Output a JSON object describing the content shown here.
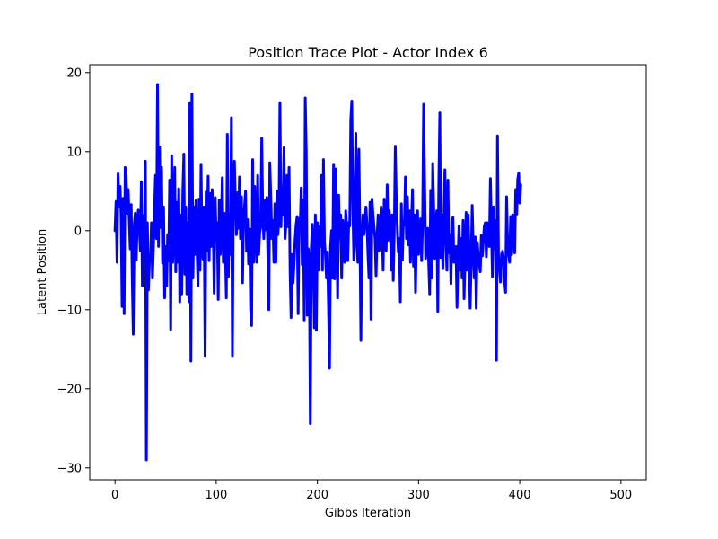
{
  "chart_data": {
    "type": "line",
    "title": "Position Trace Plot - Actor Index 6",
    "xlabel": "Gibbs Iteration",
    "ylabel": "Latent Position",
    "xlim": [
      -25,
      525
    ],
    "ylim": [
      -31.5,
      21
    ],
    "x_ticks": [
      0,
      100,
      200,
      300,
      400,
      500
    ],
    "x_tick_labels": [
      "0",
      "100",
      "200",
      "300",
      "400",
      "500"
    ],
    "y_ticks": [
      -30,
      -20,
      -10,
      0,
      10,
      20
    ],
    "y_tick_labels": [
      "−30",
      "−20",
      "−10",
      "0",
      "10",
      "20"
    ],
    "grid": false,
    "series": [
      {
        "color": "#0000ff",
        "x_start": 0,
        "x_step": 1,
        "values": [
          0,
          3.7,
          -4.0,
          7.2,
          3.1,
          5.6,
          2.0,
          -9.6,
          4.1,
          -10.5,
          8.0,
          7.1,
          2.2,
          5.2,
          1.5,
          -2.3,
          3.3,
          -6.0,
          -13.1,
          0.8,
          2.2,
          -3.7,
          1.1,
          2.6,
          0.5,
          -2.5,
          6.2,
          -7.0,
          1.9,
          -2.0,
          8.8,
          -29.0,
          1.0,
          -7.5,
          -4.0,
          -3.8,
          1.0,
          -6.0,
          -2.0,
          2.7,
          7.0,
          -1.0,
          18.5,
          -2.0,
          10.6,
          0.4,
          8.0,
          -4.1,
          3.0,
          -8.5,
          -2.0,
          -7.0,
          -0.5,
          -3.8,
          6.4,
          -12.5,
          9.5,
          -4.0,
          1.5,
          8.0,
          -5.2,
          3.6,
          -4.0,
          5.3,
          -9.0,
          2.0,
          -8.0,
          4.9,
          9.7,
          -5.5,
          3.0,
          -8.0,
          1.0,
          -9.0,
          16.2,
          -16.5,
          17.3,
          -6.0,
          3.0,
          -3.0,
          3.8,
          -2.2,
          -7.0,
          4.0,
          -5.0,
          8.3,
          -2.0,
          -3.6,
          3.0,
          -15.8,
          4.9,
          -2.5,
          6.9,
          -3.8,
          4.7,
          -2.0,
          5.2,
          0.7,
          -7.9,
          4.2,
          -1.0,
          1.0,
          -8.7,
          3.9,
          -3.0,
          0.5,
          6.7,
          -4.0,
          2.2,
          -2.0,
          -8.5,
          12.2,
          -5.8,
          2.1,
          -3.0,
          14.3,
          -15.8,
          6.0,
          8.8,
          3.2,
          -0.5,
          4.8,
          0.3,
          6.8,
          -1.0,
          4.3,
          -6.6,
          1.0,
          3.1,
          5.0,
          -2.6,
          1.4,
          -4.2,
          0.2,
          -10.0,
          -12.0,
          9.0,
          -4.0,
          5.6,
          1.1,
          -4.0,
          7.0,
          -3.0,
          -0.2,
          0.5,
          11.7,
          2.2,
          -1.0,
          3.8,
          0.1,
          4.2,
          -3.0,
          -10.0,
          8.6,
          4.0,
          -1.0,
          1.3,
          -4.0,
          3.4,
          -4.0,
          5.0,
          -0.5,
          1.7,
          16.2,
          0.5,
          5.6,
          2.0,
          10.5,
          -1.0,
          0.8,
          7.0,
          0.5,
          8.0,
          -5.0,
          -11.0,
          -3.0,
          -6.6,
          -4.0,
          -1.0,
          0.8,
          1.8,
          -10.5,
          1.5,
          0.5,
          5.4,
          -4.3,
          3.9,
          -11.3,
          16.8,
          10.0,
          -10.7,
          -2.3,
          -4.5,
          -24.4,
          -2.1,
          0.8,
          -3.2,
          -12.3,
          2.0,
          -12.6,
          1.0,
          -5.0,
          0.5,
          -2.0,
          7.0,
          -5.0,
          9.0,
          -1.5,
          -3.0,
          -6.0,
          -2.7,
          -9.7,
          -17.4,
          -2.0,
          0.0,
          -6.0,
          8.3,
          -6.1,
          7.8,
          2.5,
          -8.5,
          4.5,
          -1.0,
          2.0,
          -6.0,
          1.3,
          -1.8,
          -4.0,
          2.5,
          0.4,
          -3.8,
          1.0,
          0.6,
          14.0,
          16.4,
          3.4,
          -3.7,
          2.0,
          12.3,
          -2.0,
          -4.0,
          10.3,
          0.3,
          -13.9,
          -1.0,
          2.0,
          -0.5,
          1.0,
          3.0,
          0.8,
          -3.0,
          -6.0,
          3.6,
          -11.2,
          4.0,
          2.0,
          0.5,
          -1.0,
          -5.7,
          -0.8,
          2.0,
          -2.5,
          -1.0,
          3.0,
          0.5,
          -5.0,
          4.0,
          0.0,
          -2.5,
          5.8,
          -1.2,
          2.5,
          1.0,
          -5.0,
          2.0,
          -6.3,
          0.0,
          10.7,
          4.0,
          0.5,
          -2.7,
          -1.0,
          -9.0,
          3.4,
          -3.7,
          1.2,
          0.7,
          6.8,
          -1.0,
          4.3,
          -1.8,
          2.5,
          -4.0,
          1.0,
          5.2,
          -4.5,
          2.0,
          -7.8,
          0.0,
          2.5,
          -3.0,
          -1.0,
          1.5,
          -3.8,
          1.0,
          16.0,
          6.0,
          -3.5,
          -1.0,
          0.3,
          -4.0,
          -8.0,
          5.1,
          -6.0,
          8.5,
          2.8,
          -3.5,
          0.6,
          2.5,
          -10.2,
          5.8,
          14.9,
          -3.4,
          2.0,
          -4.7,
          1.2,
          7.7,
          -1.0,
          -5.0,
          6.4,
          -2.8,
          -0.5,
          -6.7,
          1.0,
          1.7,
          -4.0,
          -3.0,
          -2.0,
          -9.7,
          -3.4,
          0.6,
          -5.0,
          -1.0,
          -6.0,
          1.3,
          -8.6,
          -3.2,
          2.3,
          -5.0,
          2.0,
          -2.6,
          -9.8,
          -4.0,
          3.2,
          -2.0,
          -6.0,
          -0.8,
          -9.8,
          -1.5,
          -3.0,
          -4.2,
          -5.2,
          -0.6,
          -3.2,
          -1.3,
          0.6,
          1.0,
          -3.3,
          1.0,
          0.5,
          -2.0,
          6.6,
          0.3,
          -5.8,
          3.0,
          -2.3,
          1.3,
          -16.4,
          12.0,
          -3.1,
          -5.0,
          -6.5,
          -3.0,
          -2.6,
          -3.5,
          -6.4,
          -7.8,
          4.3,
          -1.4,
          -3.1,
          -4.0,
          1.8,
          -3.0,
          2.0,
          0.5,
          -2.8,
          5.2,
          2.1,
          6.5,
          7.3,
          3.5,
          5.8
        ]
      }
    ]
  }
}
